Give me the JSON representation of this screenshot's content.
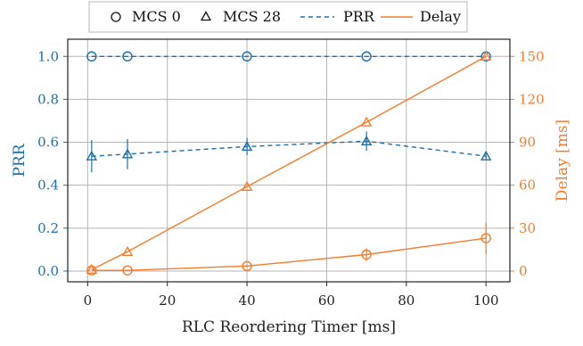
{
  "colors": {
    "left_axis": "#1f6fa8",
    "right_axis": "#f57c2c",
    "grid": "#b5b5b5",
    "frame": "#222222"
  },
  "legend": {
    "position": "top-center",
    "mcs0_label": "MCS 0",
    "mcs28_label": "MCS 28",
    "prr_label": "PRR",
    "delay_label": "Delay"
  },
  "chart_data": {
    "type": "line",
    "grid": true,
    "x": [
      1,
      10,
      40,
      70,
      100
    ],
    "xlabel": "RLC Reordering Timer [ms]",
    "xlim": [
      -5,
      106
    ],
    "xticks": [
      0,
      20,
      40,
      60,
      80,
      100
    ],
    "ylabel_left": "PRR",
    "ylim_left": [
      -0.05,
      1.08
    ],
    "yticks_left": [
      "0.0",
      "0.2",
      "0.4",
      "0.6",
      "0.8",
      "1.0"
    ],
    "ylabel_right": "Delay [ms]",
    "ylim_right": [
      -7.5,
      162
    ],
    "yticks_right": [
      0,
      30,
      60,
      90,
      120,
      150
    ],
    "series": [
      {
        "name": "MCS 0",
        "axis": "left",
        "metric": "PRR",
        "marker": "circle",
        "style": "dashed",
        "color": "#1f6fa8",
        "values": [
          1.0,
          1.0,
          1.0,
          1.0,
          1.0
        ],
        "err": [
          0,
          0,
          0,
          0,
          0
        ]
      },
      {
        "name": "MCS 28",
        "axis": "left",
        "metric": "PRR",
        "marker": "triangle",
        "style": "dashed",
        "color": "#1f6fa8",
        "values": [
          0.535,
          0.545,
          0.58,
          0.605,
          0.535
        ],
        "err": [
          0.075,
          0.07,
          0.04,
          0.045,
          0.015
        ]
      },
      {
        "name": "MCS 0",
        "axis": "right",
        "metric": "Delay",
        "marker": "circle",
        "style": "solid",
        "color": "#f57c2c",
        "values": [
          0.5,
          0.5,
          3.5,
          11.5,
          23
        ],
        "err": [
          0,
          0,
          0.8,
          4.5,
          11
        ]
      },
      {
        "name": "MCS 28",
        "axis": "right",
        "metric": "Delay",
        "marker": "triangle",
        "style": "solid",
        "color": "#f57c2c",
        "values": [
          1,
          13.5,
          59,
          104,
          150
        ],
        "err": [
          0,
          0,
          0,
          0,
          0
        ]
      }
    ]
  }
}
